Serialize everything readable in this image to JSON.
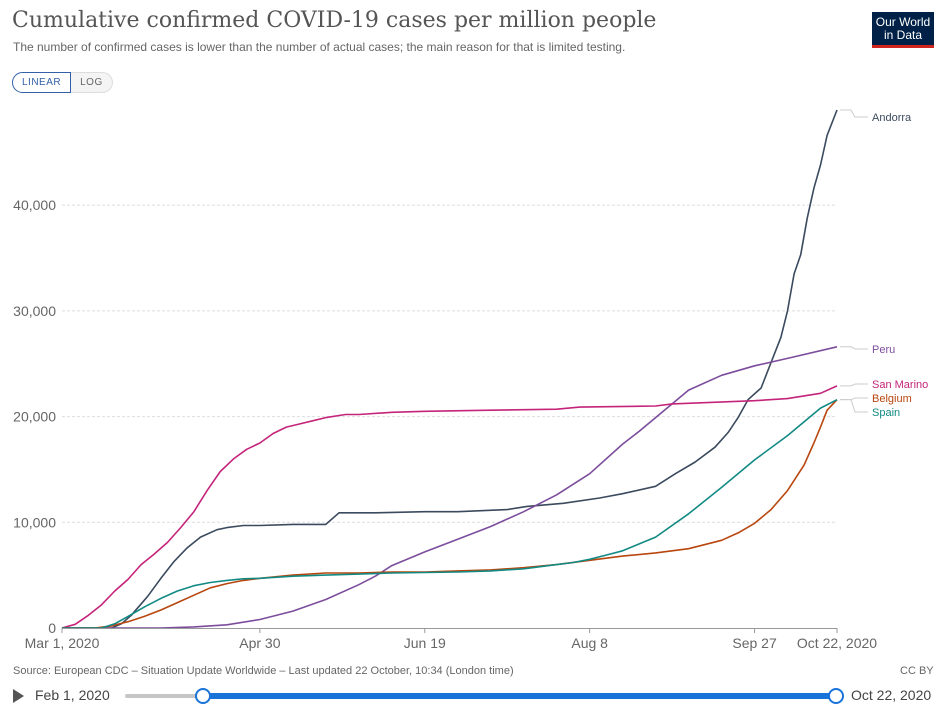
{
  "header": {
    "title": "Cumulative confirmed COVID-19 cases per million people",
    "subtitle": "The number of confirmed cases is lower than the number of actual cases; the main reason for that is limited testing.",
    "logo_line1": "Our World",
    "logo_line2": "in Data"
  },
  "scale_toggle": {
    "linear_label": "LINEAR",
    "log_label": "LOG",
    "selected": "LINEAR"
  },
  "colors": {
    "Andorra": "#3b4a5e",
    "Peru": "#7c4d9c",
    "San Marino": "#c4247a",
    "Belgium": "#b8460e",
    "Spain": "#128a84",
    "grid": "#dddddd",
    "accent": "#1a73d9"
  },
  "chart_data": {
    "type": "line",
    "title": "Cumulative confirmed COVID-19 cases per million people",
    "x_ticks": [
      "Mar 1, 2020",
      "Apr 30",
      "Jun 19",
      "Aug 8",
      "Sep 27",
      "Oct 22, 2020"
    ],
    "x_tick_days": [
      0,
      60,
      110,
      160,
      210,
      235
    ],
    "xlim": [
      "Mar 1, 2020",
      "Oct 22, 2020"
    ],
    "xlim_days": [
      0,
      235
    ],
    "y_ticks": [
      "0",
      "10,000",
      "20,000",
      "30,000",
      "40,000"
    ],
    "y_tick_values": [
      0,
      10000,
      20000,
      30000,
      40000
    ],
    "ylim": [
      0,
      49000
    ],
    "grid": true,
    "legend": "inline labels at right end of lines",
    "series": [
      {
        "name": "Andorra",
        "days": [
          0,
          15,
          18,
          21,
          26,
          30,
          34,
          38,
          42,
          47,
          50,
          55,
          60,
          70,
          80,
          84,
          95,
          110,
          120,
          135,
          141,
          152,
          163,
          170,
          180,
          186,
          192,
          198,
          202,
          205,
          208,
          212,
          214,
          216,
          218,
          220,
          222,
          224,
          226,
          228,
          230,
          232,
          235
        ],
        "values": [
          0,
          0,
          400,
          1200,
          3000,
          4700,
          6300,
          7600,
          8600,
          9300,
          9500,
          9700,
          9700,
          9800,
          9800,
          10900,
          10900,
          11000,
          11000,
          11200,
          11500,
          11800,
          12300,
          12700,
          13400,
          14600,
          15700,
          17100,
          18500,
          19900,
          21600,
          22700,
          24300,
          25900,
          27500,
          30000,
          33500,
          35300,
          38800,
          41600,
          43800,
          46600,
          49000
        ]
      },
      {
        "name": "Peru",
        "days": [
          0,
          30,
          40,
          50,
          60,
          70,
          80,
          90,
          95,
          100,
          110,
          120,
          130,
          140,
          150,
          160,
          170,
          175,
          180,
          185,
          190,
          200,
          210,
          220,
          235
        ],
        "values": [
          0,
          0,
          100,
          300,
          800,
          1600,
          2700,
          4100,
          4900,
          5900,
          7200,
          8400,
          9600,
          11000,
          12600,
          14600,
          17400,
          18600,
          19900,
          21200,
          22500,
          23900,
          24800,
          25500,
          26600
        ]
      },
      {
        "name": "San Marino",
        "days": [
          0,
          4,
          8,
          12,
          16,
          20,
          24,
          28,
          32,
          36,
          40,
          44,
          48,
          52,
          56,
          60,
          64,
          68,
          72,
          76,
          80,
          86,
          90,
          100,
          110,
          130,
          150,
          157,
          180,
          185,
          210,
          220,
          230,
          235
        ],
        "values": [
          0,
          350,
          1200,
          2200,
          3500,
          4600,
          6000,
          7000,
          8100,
          9500,
          11000,
          13000,
          14800,
          16000,
          16900,
          17500,
          18400,
          19000,
          19300,
          19600,
          19900,
          20200,
          20200,
          20400,
          20500,
          20600,
          20700,
          20900,
          21000,
          21200,
          21500,
          21700,
          22200,
          22900
        ]
      },
      {
        "name": "Belgium",
        "days": [
          0,
          10,
          15,
          20,
          25,
          30,
          35,
          40,
          45,
          50,
          55,
          60,
          70,
          80,
          90,
          100,
          110,
          120,
          130,
          140,
          150,
          160,
          170,
          180,
          190,
          200,
          205,
          210,
          215,
          220,
          225,
          228,
          230,
          232,
          235
        ],
        "values": [
          0,
          0,
          200,
          600,
          1100,
          1700,
          2400,
          3100,
          3800,
          4200,
          4500,
          4700,
          5000,
          5200,
          5200,
          5300,
          5300,
          5400,
          5500,
          5700,
          6000,
          6400,
          6800,
          7100,
          7500,
          8300,
          9000,
          9900,
          11200,
          13000,
          15400,
          17500,
          19000,
          20600,
          21600
        ]
      },
      {
        "name": "Spain",
        "days": [
          0,
          12,
          16,
          20,
          25,
          30,
          35,
          40,
          45,
          50,
          55,
          60,
          70,
          80,
          90,
          100,
          110,
          120,
          130,
          140,
          150,
          155,
          160,
          165,
          170,
          180,
          190,
          200,
          210,
          220,
          230,
          235
        ],
        "values": [
          0,
          0,
          400,
          1100,
          2000,
          2800,
          3500,
          4000,
          4300,
          4500,
          4650,
          4700,
          4900,
          5000,
          5100,
          5200,
          5250,
          5300,
          5400,
          5600,
          6000,
          6200,
          6500,
          6900,
          7300,
          8600,
          10800,
          13300,
          15900,
          18200,
          20800,
          21600
        ]
      }
    ]
  },
  "footer": {
    "source": "Source: European CDC – Situation Update Worldwide – Last updated 22 October, 10:34 (London time)",
    "license": "CC BY"
  },
  "timeline": {
    "start_label": "Feb 1, 2020",
    "end_label": "Oct 22, 2020",
    "selected_range_fraction": [
      0.11,
      1.0
    ]
  }
}
